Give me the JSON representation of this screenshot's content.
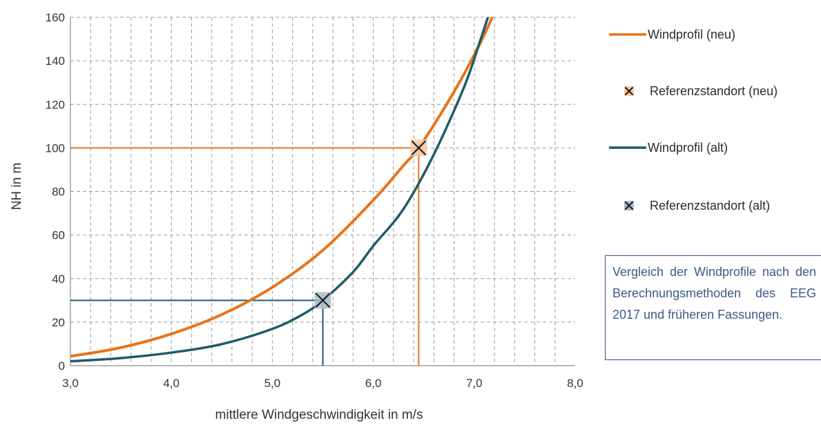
{
  "chart_data": {
    "type": "line",
    "xlabel": "mittlere Windgeschwindigkeit in m/s",
    "ylabel": "NH in m",
    "xlim": [
      3.0,
      8.0
    ],
    "ylim": [
      0,
      160
    ],
    "x_ticks": [
      "3,0",
      "4,0",
      "5,0",
      "6,0",
      "7,0",
      "8,0"
    ],
    "y_ticks": [
      "0",
      "20",
      "40",
      "60",
      "80",
      "100",
      "120",
      "140",
      "160"
    ],
    "grid": true,
    "legend_position": "right",
    "series": [
      {
        "name": "Windprofil (neu)",
        "color": "#e8731a",
        "x": [
          3.0,
          3.5,
          4.0,
          4.5,
          5.0,
          5.5,
          6.0,
          6.3,
          6.45,
          6.7,
          6.9,
          7.1,
          7.27
        ],
        "y": [
          4.3,
          8.3,
          14.6,
          23.5,
          36.0,
          53.0,
          76.0,
          92.0,
          100.0,
          118.0,
          134.0,
          152.0,
          170.0
        ]
      },
      {
        "name": "Windprofil (alt)",
        "color": "#1f5a69",
        "x": [
          3.0,
          3.5,
          4.0,
          4.5,
          5.0,
          5.3,
          5.5,
          5.8,
          6.0,
          6.3,
          6.6,
          6.9,
          7.05,
          7.15
        ],
        "y": [
          2.0,
          3.5,
          6.0,
          9.9,
          16.9,
          23.5,
          30.0,
          43.0,
          55.0,
          72.0,
          97.0,
          128.0,
          148.0,
          162.0
        ]
      }
    ],
    "reference_points": [
      {
        "name": "Referenzstandort (neu)",
        "x": 6.45,
        "y": 100,
        "color": "#e8731a",
        "fill": "#f4c8a6"
      },
      {
        "name": "Referenzstandort (alt)",
        "x": 5.5,
        "y": 30,
        "color": "#1f5a69",
        "fill": "#a9bcc7"
      }
    ]
  },
  "caption": "Vergleich der Windprofile nach den Berechnungsme­thoden des EEG 2017 und früheren Fassungen."
}
